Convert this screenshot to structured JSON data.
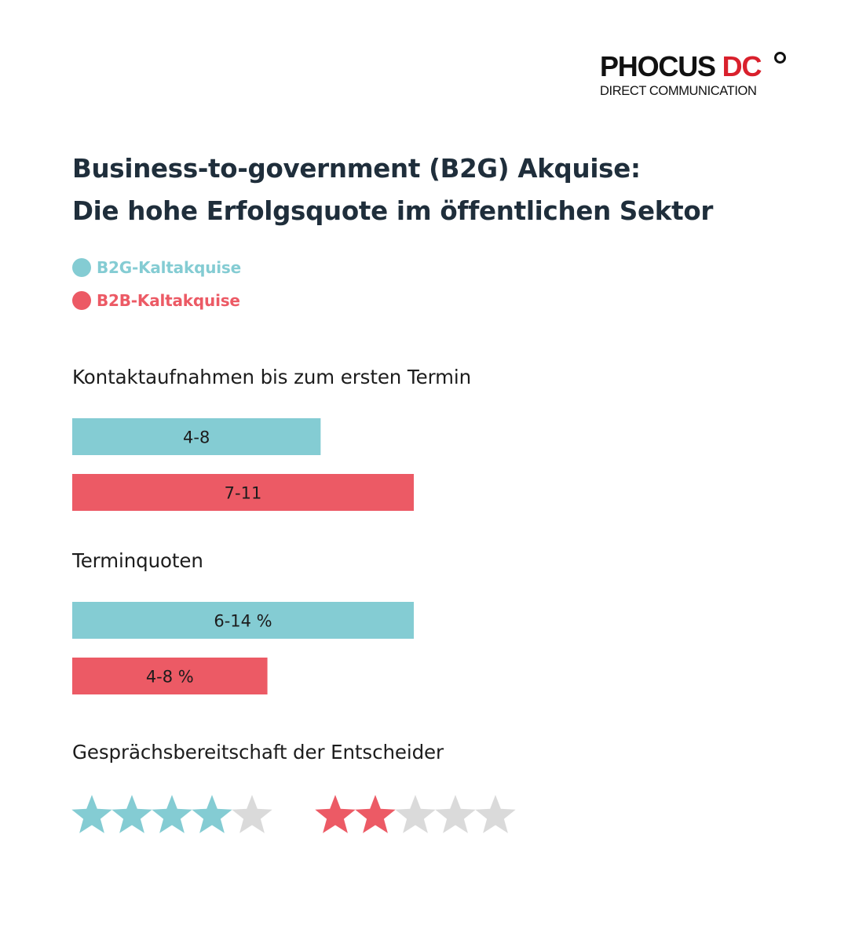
{
  "logo": {
    "main": "PHOCUS",
    "accent": "DC",
    "sub": "DIRECT COMMUNICATION"
  },
  "title_lines": [
    "Business-to-government (B2G) Akquise:",
    "Die hohe Erfolgsquote im öffentlichen Sektor"
  ],
  "legend": [
    {
      "label": "B2G-Kaltakquise",
      "color": "#84ccd3"
    },
    {
      "label": "B2B-Kaltakquise",
      "color": "#ec5a65"
    }
  ],
  "colors": {
    "b2g": "#84ccd3",
    "b2b": "#ec5a65",
    "star_empty": "#dadada",
    "text": "#1c1c1c"
  },
  "chart_data": [
    {
      "type": "bar",
      "title": "Kontaktaufnahmen bis zum ersten Termin",
      "series": [
        {
          "name": "B2G-Kaltakquise",
          "label": "4-8",
          "value": 8
        },
        {
          "name": "B2B-Kaltakquise",
          "label": "7-11",
          "value": 11
        }
      ],
      "xlim": [
        0,
        11
      ]
    },
    {
      "type": "bar",
      "title": "Terminquoten",
      "series": [
        {
          "name": "B2G-Kaltakquise",
          "label": "6-14 %",
          "value": 14
        },
        {
          "name": "B2B-Kaltakquise",
          "label": "4-8 %",
          "value": 8
        }
      ],
      "xlim": [
        0,
        14
      ]
    },
    {
      "type": "rating",
      "title": "Gesprächsbereitschaft der Entscheider",
      "max": 5,
      "series": [
        {
          "name": "B2G-Kaltakquise",
          "value": 4
        },
        {
          "name": "B2B-Kaltakquise",
          "value": 2
        }
      ]
    }
  ]
}
